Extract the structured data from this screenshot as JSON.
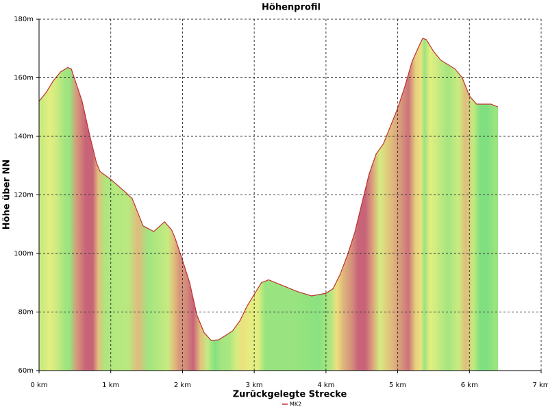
{
  "chart_data": {
    "type": "area",
    "title": "Höhenprofil",
    "x_label": "Zurückgelegte Strecke",
    "y_label": "Höhe über NN",
    "x": [
      0,
      0.1,
      0.2,
      0.3,
      0.4,
      0.45,
      0.6,
      0.7,
      0.8,
      0.85,
      1.0,
      1.2,
      1.3,
      1.45,
      1.6,
      1.75,
      1.85,
      1.9,
      2.0,
      2.1,
      2.2,
      2.3,
      2.4,
      2.5,
      2.6,
      2.7,
      2.8,
      2.9,
      3.0,
      3.1,
      3.2,
      3.4,
      3.6,
      3.8,
      4.0,
      4.1,
      4.2,
      4.3,
      4.4,
      4.5,
      4.6,
      4.7,
      4.8,
      5.0,
      5.1,
      5.2,
      5.3,
      5.35,
      5.4,
      5.5,
      5.6,
      5.8,
      5.9,
      6.0,
      6.1,
      6.2,
      6.3,
      6.4
    ],
    "series": [
      {
        "name": "MK2",
        "color": "#c03030",
        "values": [
          152,
          155,
          159,
          162,
          163.5,
          163,
          152,
          141,
          131,
          128,
          125.3,
          121,
          118.7,
          109.4,
          107.5,
          110.8,
          108,
          105,
          97.7,
          90,
          79,
          73,
          70.3,
          70.5,
          72,
          73.6,
          77,
          82,
          86,
          90,
          91,
          89,
          87,
          85.5,
          86.4,
          88,
          93,
          99.5,
          107,
          117,
          127,
          134,
          137.4,
          149.6,
          157,
          165.5,
          171,
          173.5,
          173,
          169,
          166,
          163,
          160,
          153.8,
          151,
          151,
          151,
          150
        ]
      }
    ],
    "xlim": [
      0,
      7
    ],
    "xticks": [
      {
        "value": 0,
        "label": "0 km"
      },
      {
        "value": 1,
        "label": "1 km"
      },
      {
        "value": 2,
        "label": "2 km"
      },
      {
        "value": 3,
        "label": "3 km"
      },
      {
        "value": 4,
        "label": "4 km"
      },
      {
        "value": 5,
        "label": "5 km"
      },
      {
        "value": 6,
        "label": "6 km"
      },
      {
        "value": 7,
        "label": "7 km"
      }
    ],
    "ylim": [
      60,
      180
    ],
    "yticks": [
      {
        "value": 60,
        "label": "60m"
      },
      {
        "value": 80,
        "label": "80m"
      },
      {
        "value": 100,
        "label": "100m"
      },
      {
        "value": 120,
        "label": "120m"
      },
      {
        "value": 140,
        "label": "140m"
      },
      {
        "value": 160,
        "label": "160m"
      },
      {
        "value": 180,
        "label": "180m"
      }
    ],
    "grid": true
  }
}
